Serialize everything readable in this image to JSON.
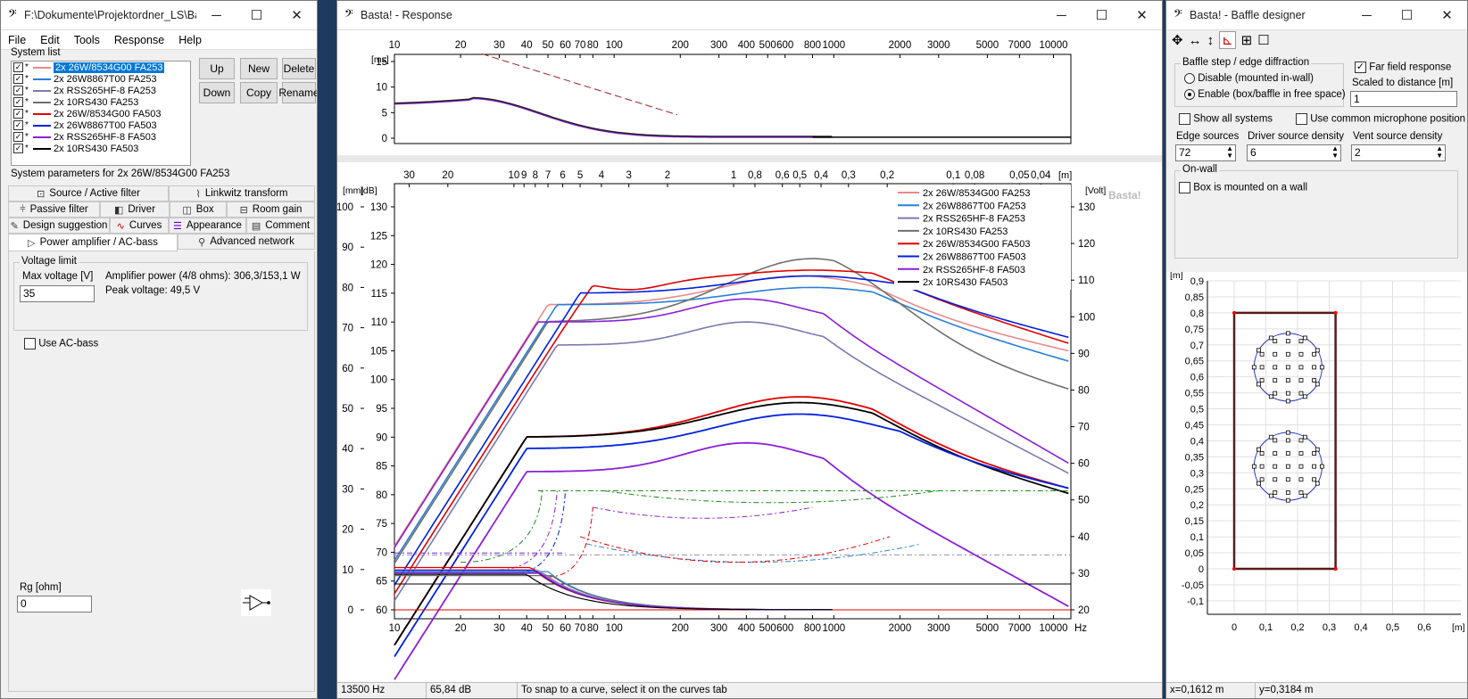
{
  "left_window": {
    "title": "F:\\Dokumente\\Projektordner_LS\\Bast...",
    "menu": [
      "File",
      "Edit",
      "Tools",
      "Response",
      "Help"
    ],
    "system_list_label": "System list",
    "systems": [
      {
        "name": "2x 26W/8534G00 FA253",
        "color": "#e88a8a",
        "selected": true
      },
      {
        "name": "2x 26W8867T00 FA253",
        "color": "#2a7fd6"
      },
      {
        "name": "2x RSS265HF-8 FA253",
        "color": "#7a7ab0"
      },
      {
        "name": "2x 10RS430 FA253",
        "color": "#707070"
      },
      {
        "name": "2x 26W/8534G00 FA503",
        "color": "#e00000"
      },
      {
        "name": "2x 26W8867T00 FA503",
        "color": "#0020e0"
      },
      {
        "name": "2x RSS265HF-8 FA503",
        "color": "#8a20d8"
      },
      {
        "name": "2x 10RS430 FA503",
        "color": "#000000"
      }
    ],
    "buttons": {
      "up": "Up",
      "new": "New",
      "delete": "Delete",
      "down": "Down",
      "copy": "Copy",
      "rename": "Rename"
    },
    "params_label": "System parameters for 2x 26W/8534G00 FA253",
    "tabs": [
      [
        "Source / Active filter",
        "Linkwitz transform"
      ],
      [
        "Passive filter",
        "Driver",
        "Box",
        "Room gain"
      ],
      [
        "Design suggestion",
        "Curves",
        "Appearance",
        "Comment"
      ],
      [
        "Power amplifier / AC-bass",
        "Advanced network"
      ]
    ],
    "voltage_group": "Voltage limit",
    "max_voltage_label": "Max voltage [V]",
    "max_voltage_value": "35",
    "amp_power": "Amplifier power (4/8 ohms): 306,3/153,1 W",
    "peak_voltage": "Peak voltage: 49,5 V",
    "use_acbass": "Use AC-bass",
    "rg_label": "Rg [ohm]",
    "rg_value": "0"
  },
  "response_window": {
    "title": "Basta! - Response",
    "top_ylabel": "[ms]",
    "top_yticks": [
      "15",
      "10",
      "5",
      "0"
    ],
    "freq_ticks": [
      "10",
      "20",
      "30",
      "40",
      "50",
      "60",
      "70",
      "80",
      "100",
      "200",
      "300",
      "400",
      "500",
      "600",
      "800",
      "1000",
      "2000",
      "3000",
      "5000",
      "7000",
      "10000"
    ],
    "freq_unit": "Hz",
    "dist_ticks": [
      "30",
      "20",
      "10",
      "9",
      "8",
      "7",
      "6",
      "5",
      "4",
      "3",
      "2",
      "1",
      "0,8",
      "0,6",
      "0,5",
      "0,4",
      "0,3",
      "0,2",
      "0,1",
      "0,08",
      "0,05",
      "0,04"
    ],
    "dist_unit": "[m]",
    "mm_label": "[mm]",
    "db_label": "[dB]",
    "volt_label": "[Volt]",
    "mm_ticks": [
      "100",
      "90",
      "80",
      "70",
      "60",
      "50",
      "40",
      "30",
      "20",
      "10",
      "0"
    ],
    "db_ticks": [
      "130",
      "125",
      "120",
      "115",
      "110",
      "105",
      "100",
      "95",
      "90",
      "85",
      "80",
      "75",
      "70",
      "65",
      "60"
    ],
    "volt_ticks": [
      "130",
      "120",
      "110",
      "100",
      "90",
      "80",
      "70",
      "60",
      "50",
      "40",
      "30",
      "20"
    ],
    "watermark": "Basta!",
    "legend": [
      {
        "name": "2x 26W/8534G00 FA253",
        "color": "#e88a8a"
      },
      {
        "name": "2x 26W8867T00 FA253",
        "color": "#2a7fd6"
      },
      {
        "name": "2x RSS265HF-8 FA253",
        "color": "#7a7ab0"
      },
      {
        "name": "2x 10RS430 FA253",
        "color": "#707070"
      },
      {
        "name": "2x 26W/8534G00 FA503",
        "color": "#e00000"
      },
      {
        "name": "2x 26W8867T00 FA503",
        "color": "#0020e0"
      },
      {
        "name": "2x RSS265HF-8 FA503",
        "color": "#8a20d8"
      },
      {
        "name": "2x 10RS430 FA503",
        "color": "#000000"
      }
    ],
    "status": {
      "freq": "13500 Hz",
      "level": "65,84 dB",
      "hint": "To snap to a curve, select it on the curves tab"
    }
  },
  "baffle_window": {
    "title": "Basta! - Baffle designer",
    "group_title": "Baffle step / edge diffraction",
    "disable_label": "Disable (mounted in-wall)",
    "enable_label": "Enable (box/baffle in free space)",
    "far_field": "Far field response",
    "scaled_label": "Scaled to distance [m]",
    "scaled_value": "1",
    "show_all": "Show all systems",
    "common_mic": "Use common microphone position",
    "edge_sources_label": "Edge sources",
    "edge_sources_value": "72",
    "driver_density_label": "Driver source density",
    "driver_density_value": "6",
    "vent_density_label": "Vent source density",
    "vent_density_value": "2",
    "onwall_group": "On-wall",
    "onwall_label": "Box is mounted on a wall",
    "plot_ylabel": "[m]",
    "plot_xlabel": "[m]",
    "plot_yticks": [
      "0,9",
      "0,85",
      "0,8",
      "0,75",
      "0,7",
      "0,65",
      "0,6",
      "0,55",
      "0,5",
      "0,45",
      "0,4",
      "0,35",
      "0,3",
      "0,25",
      "0,2",
      "0,15",
      "0,1",
      "0,05",
      "0",
      "-0,05",
      "-0,1"
    ],
    "plot_xticks": [
      "0",
      "0,1",
      "0,2",
      "0,3",
      "0,4",
      "0,5",
      "0,6"
    ],
    "status_x": "x=0,1612 m",
    "status_y": "y=0,3184 m"
  }
}
